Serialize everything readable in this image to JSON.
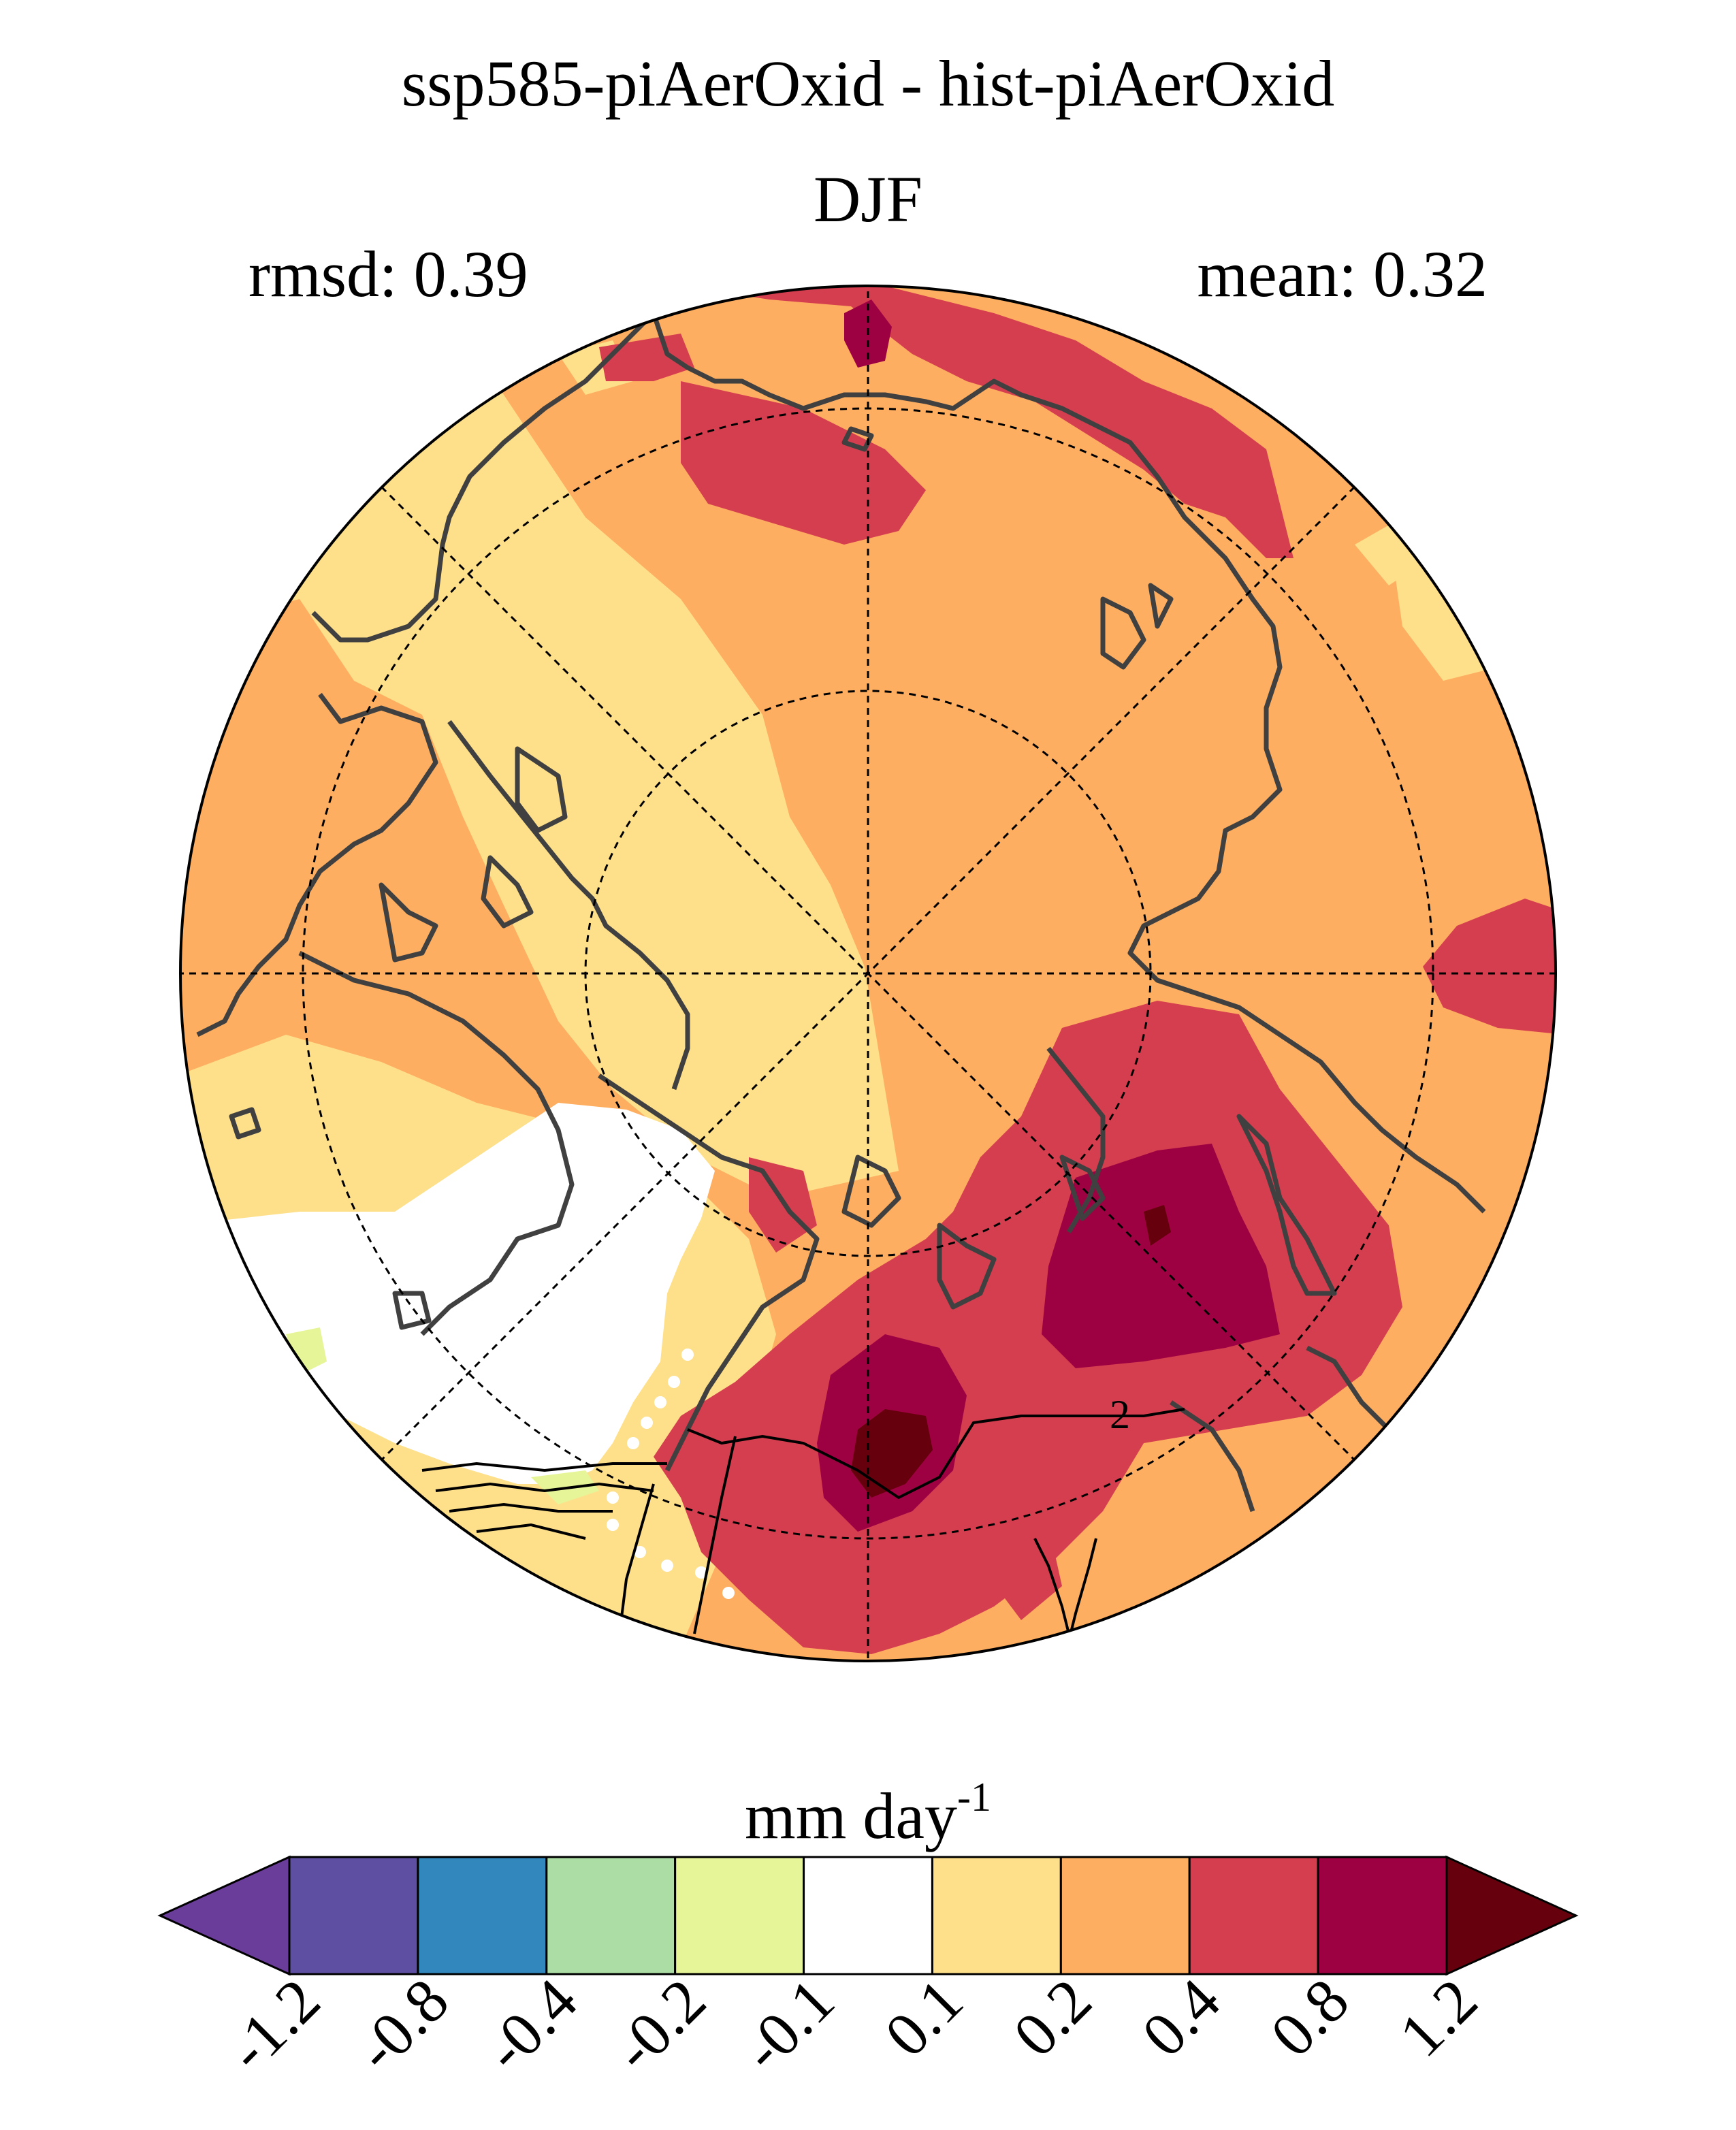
{
  "title": {
    "line1": "ssp585-piAerOxid - hist-piAerOxid",
    "line2": "DJF"
  },
  "stats": {
    "rmsd_label": "rmsd: 0.39",
    "mean_label": "mean: 0.32"
  },
  "colorbar": {
    "unit_base": "mm day",
    "unit_exp": "-1",
    "tick_labels": [
      "-1.2",
      "-0.8",
      "-0.4",
      "-0.2",
      "-0.1",
      "0.1",
      "0.2",
      "0.4",
      "0.8",
      "1.2"
    ],
    "colors": [
      "#6a3d9a",
      "#5e4fa2",
      "#3288bd",
      "#abdda4",
      "#e6f598",
      "#ffffff",
      "#fee08b",
      "#fdae61",
      "#d53e4f",
      "#9e0142",
      "#67000d"
    ]
  },
  "map": {
    "projection": "north-polar-stereographic",
    "contour_label": "2",
    "colors": {
      "ocean_base": "#fdae61",
      "light": "#fee08b",
      "red": "#d53e4f",
      "dark": "#9e0142",
      "darkest": "#67000d",
      "white": "#ffffff",
      "green": "#e6f598",
      "coast": "#404040"
    }
  }
}
